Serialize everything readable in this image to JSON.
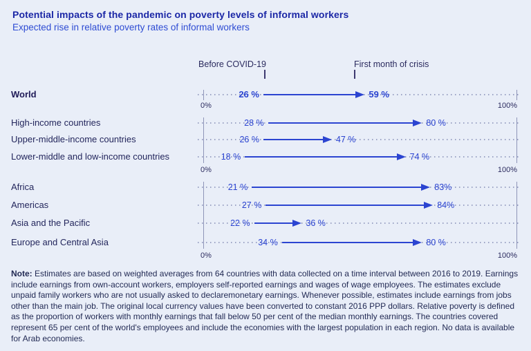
{
  "header": {
    "title": "Potential impacts of the pandemic on poverty levels of informal workers",
    "subtitle": "Expected rise in relative poverty rates of informal workers"
  },
  "colors": {
    "background": "#e9eef8",
    "title_blue": "#1b27a6",
    "subtitle_blue": "#2d4bd3",
    "arrow_blue": "#2b44d1",
    "label_navy": "#23265c",
    "dotted_line": "#9aa2c4",
    "boundary_line": "#8e94b8"
  },
  "chart_data": {
    "type": "dumbbell-arrow",
    "title": "Expected rise in relative poverty rates of informal workers",
    "col_headers": [
      "Before COVID-19",
      "First month of crisis"
    ],
    "axis": {
      "min": 0,
      "max": 100,
      "min_label": "0%",
      "max_label": "100%",
      "unit": "percent"
    },
    "legend_position": "top",
    "grid": "dotted-row-leaders",
    "groups": [
      {
        "rows": [
          {
            "label": "World",
            "emphasis": true,
            "before": 26,
            "after": 59,
            "before_label": "26 %",
            "after_label": "59 %"
          }
        ]
      },
      {
        "rows": [
          {
            "label": "High-income countries",
            "emphasis": false,
            "before": 28,
            "after": 80,
            "before_label": "28 %",
            "after_label": "80 %"
          },
          {
            "label": "Upper-middle-income countries",
            "emphasis": false,
            "before": 26,
            "after": 47,
            "before_label": "26 %",
            "after_label": "47 %"
          },
          {
            "label": "Lower-middle and low-income countries",
            "emphasis": false,
            "before": 18,
            "after": 74,
            "before_label": "18 %",
            "after_label": "74 %"
          }
        ]
      },
      {
        "rows": [
          {
            "label": "Africa",
            "emphasis": false,
            "before": 21,
            "after": 83,
            "before_label": "21 %",
            "after_label": "83%"
          },
          {
            "label": "Americas",
            "emphasis": false,
            "before": 27,
            "after": 84,
            "before_label": "27 %",
            "after_label": "84%"
          },
          {
            "label": "Asia and the Pacific",
            "emphasis": false,
            "before": 22,
            "after": 36,
            "before_label": "22 %",
            "after_label": "36 %"
          },
          {
            "label": "Europe and Central Asia",
            "emphasis": false,
            "before": 34,
            "after": 80,
            "before_label": "34 %",
            "after_label": "80 %"
          }
        ]
      }
    ]
  },
  "note": {
    "label": "Note:",
    "text": " Estimates are based on weighted averages from 64 countries with data collected on a time interval between  2016 to 2019. Earnings include earnings from own-account workers, employers self-reported earnings and wages of wage employees. The estimates exclude unpaid family workers who are not usually asked to declaremonetary earnings. Whenever possible, estimates include earnings from jobs other than the main job. The original local currency values have been converted to constant 2016 PPP dollars. Relative poverty is defined as the proportion of workers with monthly earnings that fall below 50 per cent of the median monthly earnings. The countries covered represent 65 per cent of the world's employees and include the economies with the largest population in each region. No data is available for Arab economies."
  }
}
